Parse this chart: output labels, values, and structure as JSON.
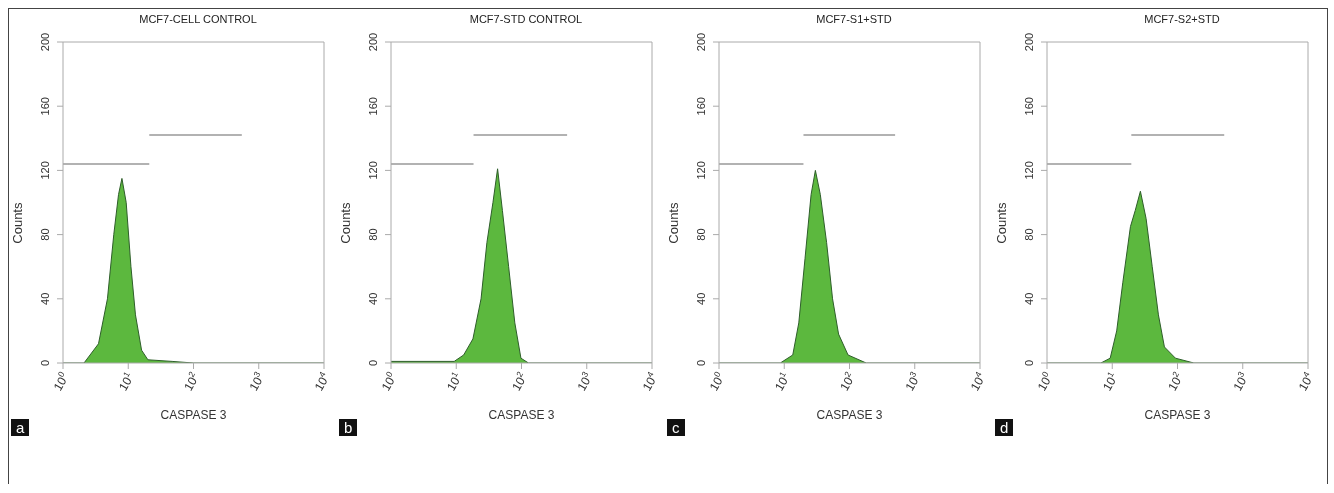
{
  "chart_data": [
    {
      "type": "area",
      "title": "MCF7-CELL CONTROL",
      "xlabel": "CASPASE 3",
      "ylabel": "Counts",
      "log": "x",
      "grid": false,
      "xlim": [
        1,
        10000
      ],
      "xticks": [
        {
          "value": 1,
          "label": "10$^{0}$"
        },
        {
          "value": 10,
          "label": "10$^{1}$"
        },
        {
          "value": 100,
          "label": "10$^{2}$"
        },
        {
          "value": 1000,
          "label": "10$^{3}$"
        },
        {
          "value": 10000,
          "label": "10$^{4}$"
        }
      ],
      "ylim": [
        0,
        200
      ],
      "yticks": [
        0,
        40,
        80,
        120,
        160,
        200
      ],
      "annotations": [
        "a"
      ],
      "series": [
        {
          "color": "#5cb83e",
          "x": [
            1,
            2.1,
            3.5,
            4.8,
            6,
            7.1,
            8,
            9.3,
            11,
            12.9,
            16,
            20,
            47,
            100,
            10000
          ],
          "values": [
            0,
            0,
            12,
            40,
            80,
            105,
            115,
            100,
            60,
            30,
            8,
            2,
            1,
            0,
            0
          ]
        },
        {
          "type": "line",
          "color": "#999999",
          "x": [
            1,
            21
          ],
          "values": [
            124,
            124
          ]
        },
        {
          "type": "line",
          "color": "#999999",
          "x": [
            21,
            550
          ],
          "values": [
            142,
            142
          ]
        }
      ]
    },
    {
      "type": "area",
      "title": "MCF7-STD CONTROL",
      "xlabel": "CASPASE 3",
      "ylabel": "Counts",
      "log": "x",
      "grid": false,
      "xlim": [
        1,
        10000
      ],
      "xticks": [
        {
          "value": 1,
          "label": "10$^{0}$"
        },
        {
          "value": 10,
          "label": "10$^{1}$"
        },
        {
          "value": 100,
          "label": "10$^{2}$"
        },
        {
          "value": 1000,
          "label": "10$^{3}$"
        },
        {
          "value": 10000,
          "label": "10$^{4}$"
        }
      ],
      "ylim": [
        0,
        200
      ],
      "yticks": [
        0,
        40,
        80,
        120,
        160,
        200
      ],
      "annotations": [
        "b"
      ],
      "series": [
        {
          "color": "#5cb83e",
          "x": [
            1,
            9.3,
            13,
            18,
            24,
            29.5,
            36.5,
            43,
            51,
            63.5,
            79,
            98,
            128,
            10000
          ],
          "values": [
            1,
            1,
            5,
            15,
            40,
            75,
            100,
            121,
            95,
            60,
            25,
            3,
            0,
            0
          ]
        },
        {
          "type": "line",
          "color": "#999999",
          "x": [
            1,
            18.4
          ],
          "values": [
            124,
            124
          ]
        },
        {
          "type": "line",
          "color": "#999999",
          "x": [
            18.4,
            500
          ],
          "values": [
            142,
            142
          ]
        }
      ]
    },
    {
      "type": "area",
      "title": "MCF7-S1+STD",
      "xlabel": "CASPASE 3",
      "ylabel": "Counts",
      "log": "x",
      "grid": false,
      "xlim": [
        1,
        10000
      ],
      "xticks": [
        {
          "value": 1,
          "label": "10$^{0}$"
        },
        {
          "value": 10,
          "label": "10$^{1}$"
        },
        {
          "value": 100,
          "label": "10$^{2}$"
        },
        {
          "value": 1000,
          "label": "10$^{3}$"
        },
        {
          "value": 10000,
          "label": "10$^{4}$"
        }
      ],
      "ylim": [
        0,
        200
      ],
      "yticks": [
        0,
        40,
        80,
        120,
        160,
        200
      ],
      "annotations": [
        "c"
      ],
      "series": [
        {
          "color": "#5cb83e",
          "x": [
            1,
            8.7,
            13.5,
            16.7,
            20.8,
            25.8,
            30,
            35.7,
            44.6,
            55,
            68,
            95,
            180,
            10000
          ],
          "values": [
            0,
            0,
            5,
            25,
            65,
            105,
            120,
            105,
            75,
            40,
            18,
            5,
            0,
            0
          ]
        },
        {
          "type": "line",
          "color": "#999999",
          "x": [
            1,
            19.7
          ],
          "values": [
            124,
            124
          ]
        },
        {
          "type": "line",
          "color": "#999999",
          "x": [
            19.7,
            500
          ],
          "values": [
            142,
            142
          ]
        }
      ]
    },
    {
      "type": "area",
      "title": "MCF7-S2+STD",
      "xlabel": "CASPASE 3",
      "ylabel": "Counts",
      "log": "x",
      "grid": false,
      "xlim": [
        1,
        10000
      ],
      "xticks": [
        {
          "value": 1,
          "label": "10$^{0}$"
        },
        {
          "value": 10,
          "label": "10$^{1}$"
        },
        {
          "value": 100,
          "label": "10$^{2}$"
        },
        {
          "value": 1000,
          "label": "10$^{3}$"
        },
        {
          "value": 10000,
          "label": "10$^{4}$"
        }
      ],
      "ylim": [
        0,
        200
      ],
      "yticks": [
        0,
        40,
        80,
        120,
        160,
        200
      ],
      "annotations": [
        "d"
      ],
      "series": [
        {
          "color": "#5cb83e",
          "x": [
            1,
            6.7,
            9.3,
            11.7,
            14.5,
            19,
            22.5,
            27,
            33,
            41,
            51,
            63,
            93,
            178,
            10000
          ],
          "values": [
            0,
            0,
            3,
            20,
            50,
            85,
            95,
            107,
            90,
            60,
            30,
            10,
            3,
            0,
            0
          ]
        },
        {
          "type": "line",
          "color": "#999999",
          "x": [
            1,
            19.6
          ],
          "values": [
            124,
            124
          ]
        },
        {
          "type": "line",
          "color": "#999999",
          "x": [
            19.6,
            520
          ],
          "values": [
            142,
            142
          ]
        }
      ]
    }
  ]
}
